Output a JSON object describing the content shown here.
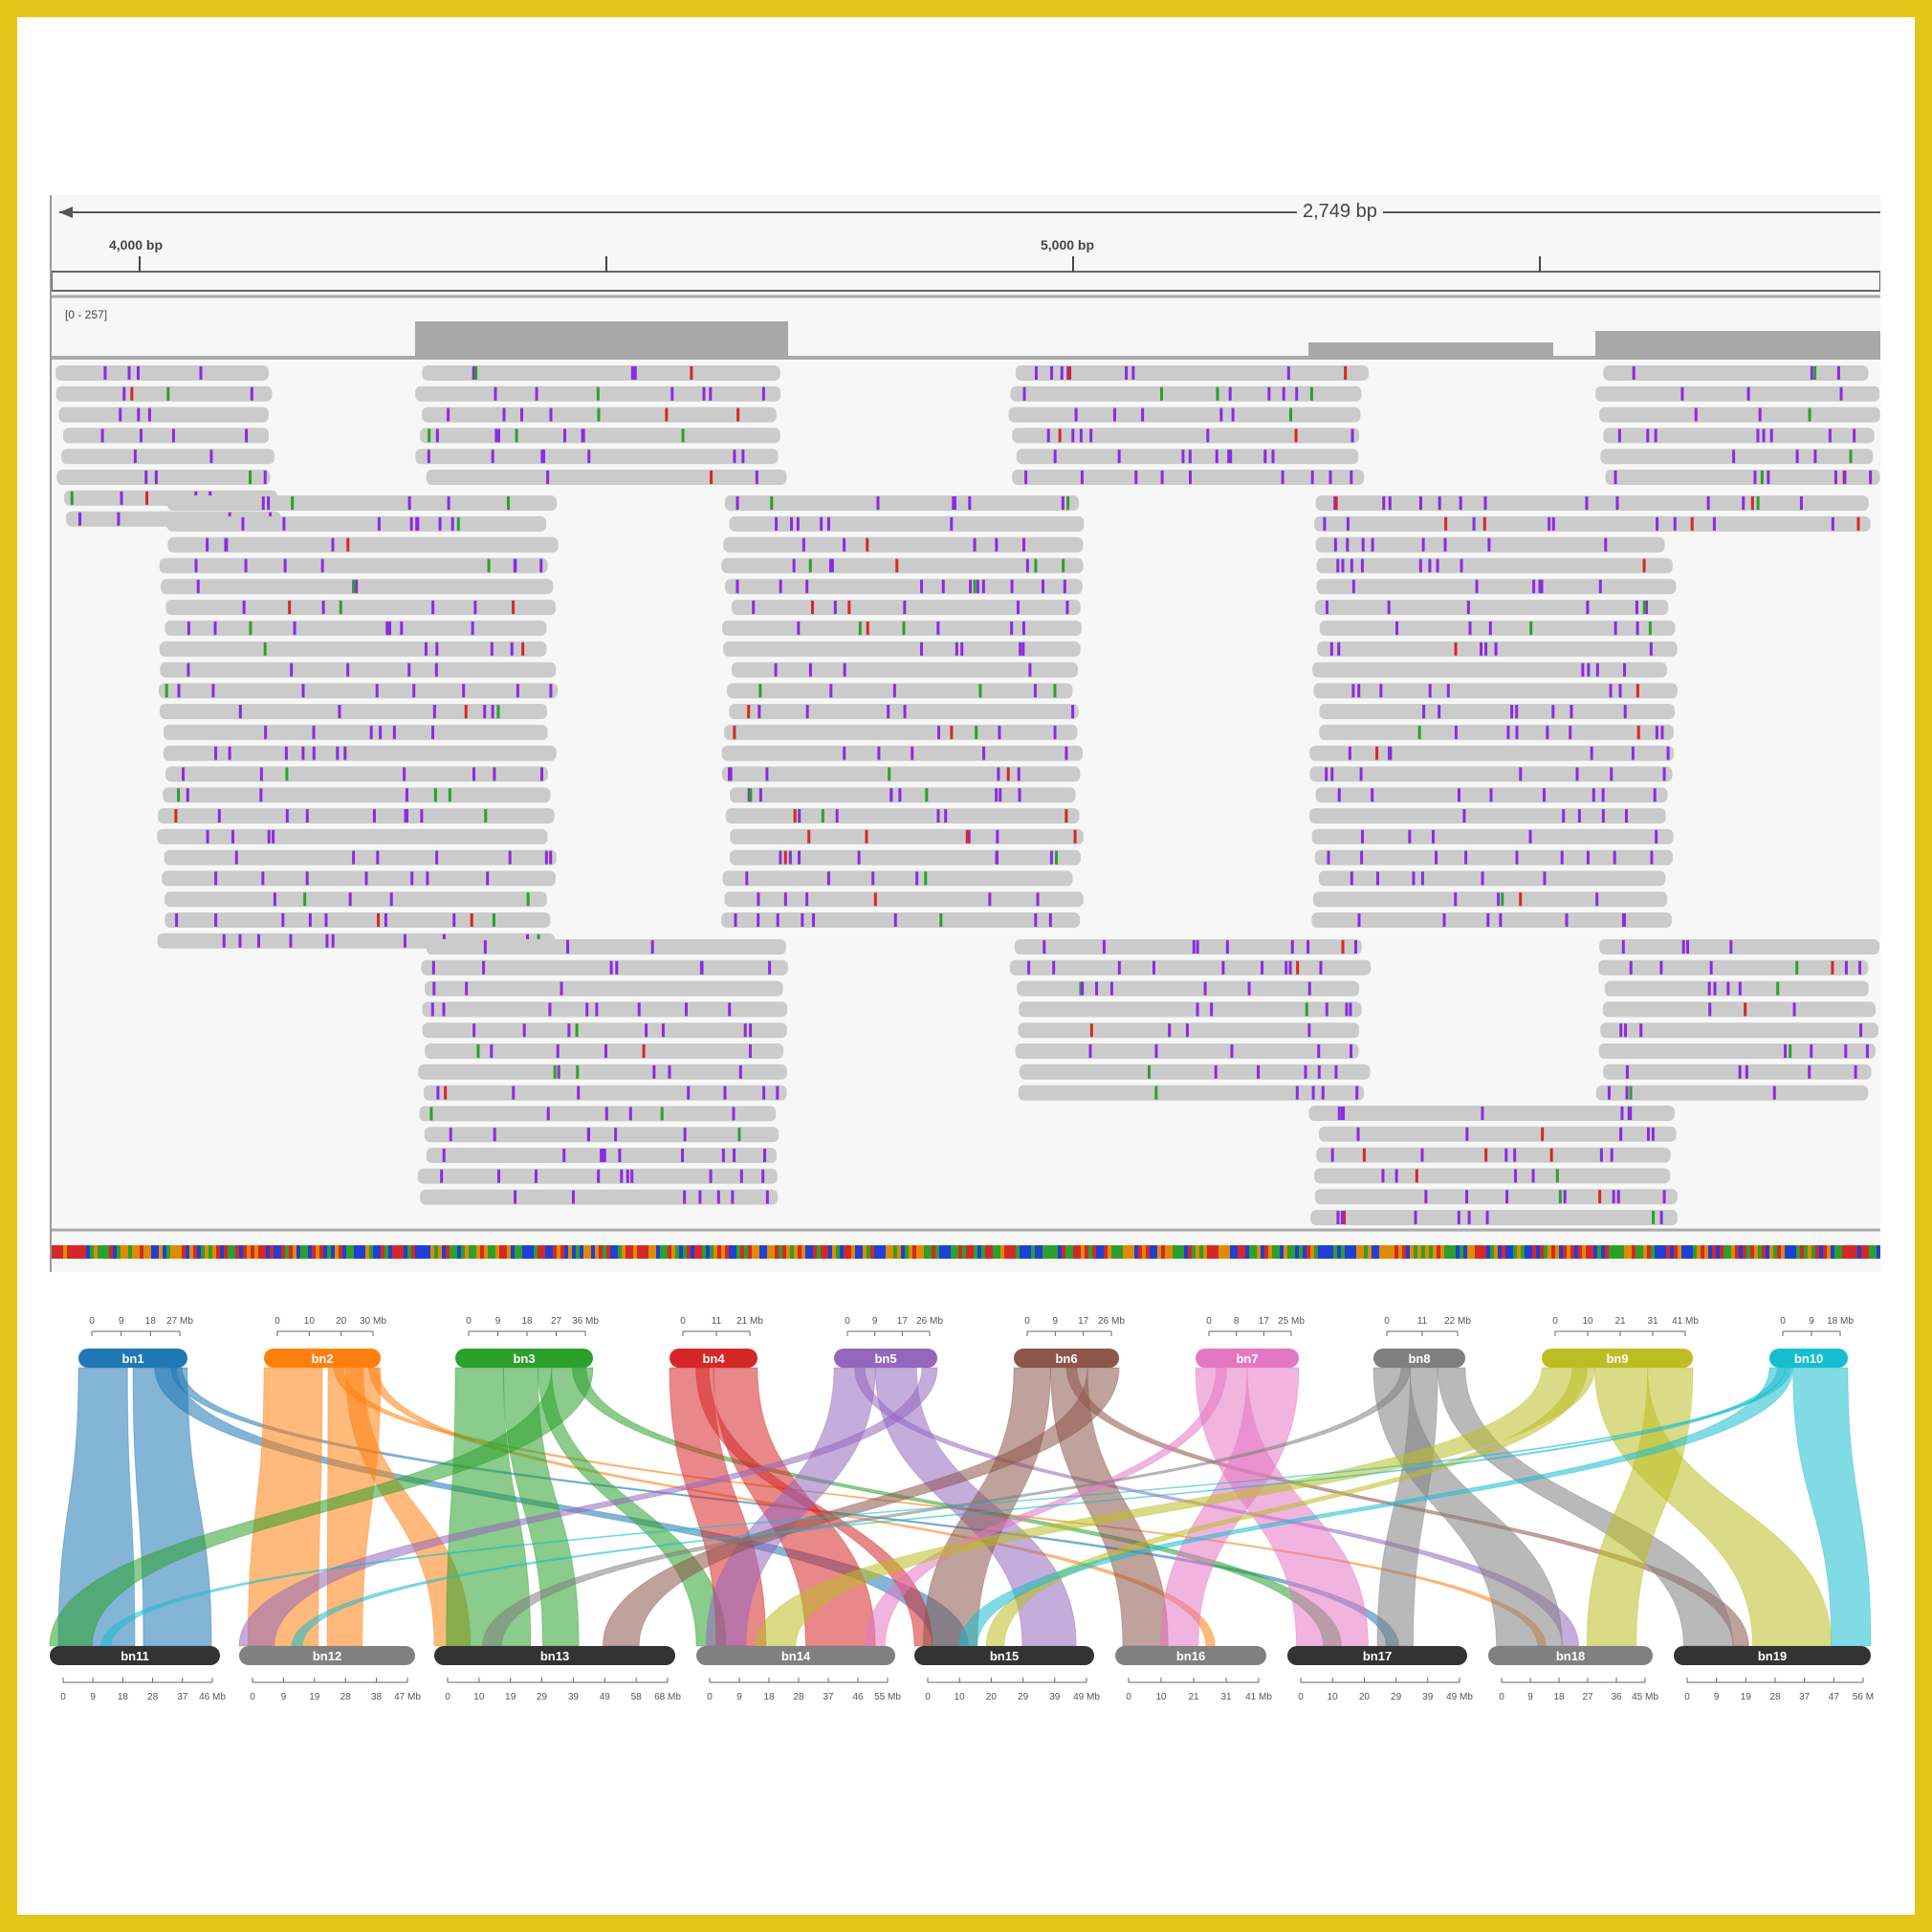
{
  "igv": {
    "span_label": "2,749 bp",
    "ticks": [
      "4,000 bp",
      "5,000 bp"
    ],
    "coverage_range": "[0 - 257]"
  },
  "chart_data": {
    "type": "synteny",
    "top_chromosomes": [
      {
        "name": "bn1",
        "color": "#1f77b4",
        "ticks": [
          "0",
          "9",
          "18",
          "27 Mb"
        ]
      },
      {
        "name": "bn2",
        "color": "#ff7f0e",
        "ticks": [
          "0",
          "10",
          "20",
          "30 Mb"
        ]
      },
      {
        "name": "bn3",
        "color": "#2ca02c",
        "ticks": [
          "0",
          "9",
          "18",
          "27",
          "36 Mb"
        ]
      },
      {
        "name": "bn4",
        "color": "#d62728",
        "ticks": [
          "0",
          "11",
          "21 Mb"
        ]
      },
      {
        "name": "bn5",
        "color": "#9467bd",
        "ticks": [
          "0",
          "9",
          "17",
          "26 Mb"
        ]
      },
      {
        "name": "bn6",
        "color": "#8c564b",
        "ticks": [
          "0",
          "9",
          "17",
          "26 Mb"
        ]
      },
      {
        "name": "bn7",
        "color": "#e377c2",
        "ticks": [
          "0",
          "8",
          "17",
          "25 Mb"
        ]
      },
      {
        "name": "bn8",
        "color": "#7f7f7f",
        "ticks": [
          "0",
          "11",
          "22 Mb"
        ]
      },
      {
        "name": "bn9",
        "color": "#bcbd22",
        "ticks": [
          "0",
          "10",
          "21",
          "31",
          "41 Mb"
        ]
      },
      {
        "name": "bn10",
        "color": "#17becf",
        "ticks": [
          "0",
          "9",
          "18 Mb"
        ]
      }
    ],
    "bottom_chromosomes": [
      {
        "name": "bn11",
        "color": "#333333",
        "ticks": [
          "0",
          "9",
          "18",
          "28",
          "37",
          "46 Mb"
        ]
      },
      {
        "name": "bn12",
        "color": "#808080",
        "ticks": [
          "0",
          "9",
          "19",
          "28",
          "38",
          "47 Mb"
        ]
      },
      {
        "name": "bn13",
        "color": "#333333",
        "ticks": [
          "0",
          "10",
          "19",
          "29",
          "39",
          "49",
          "58",
          "68 Mb"
        ]
      },
      {
        "name": "bn14",
        "color": "#808080",
        "ticks": [
          "0",
          "9",
          "18",
          "28",
          "37",
          "46",
          "55 Mb"
        ]
      },
      {
        "name": "bn15",
        "color": "#333333",
        "ticks": [
          "0",
          "10",
          "20",
          "29",
          "39",
          "49 Mb"
        ]
      },
      {
        "name": "bn16",
        "color": "#808080",
        "ticks": [
          "0",
          "10",
          "21",
          "31",
          "41 Mb"
        ]
      },
      {
        "name": "bn17",
        "color": "#333333",
        "ticks": [
          "0",
          "10",
          "20",
          "29",
          "39",
          "49 Mb"
        ]
      },
      {
        "name": "bn18",
        "color": "#808080",
        "ticks": [
          "0",
          "9",
          "18",
          "27",
          "36",
          "45 Mb"
        ]
      },
      {
        "name": "bn19",
        "color": "#333333",
        "ticks": [
          "0",
          "9",
          "19",
          "28",
          "37",
          "47",
          "56 M"
        ]
      }
    ]
  }
}
